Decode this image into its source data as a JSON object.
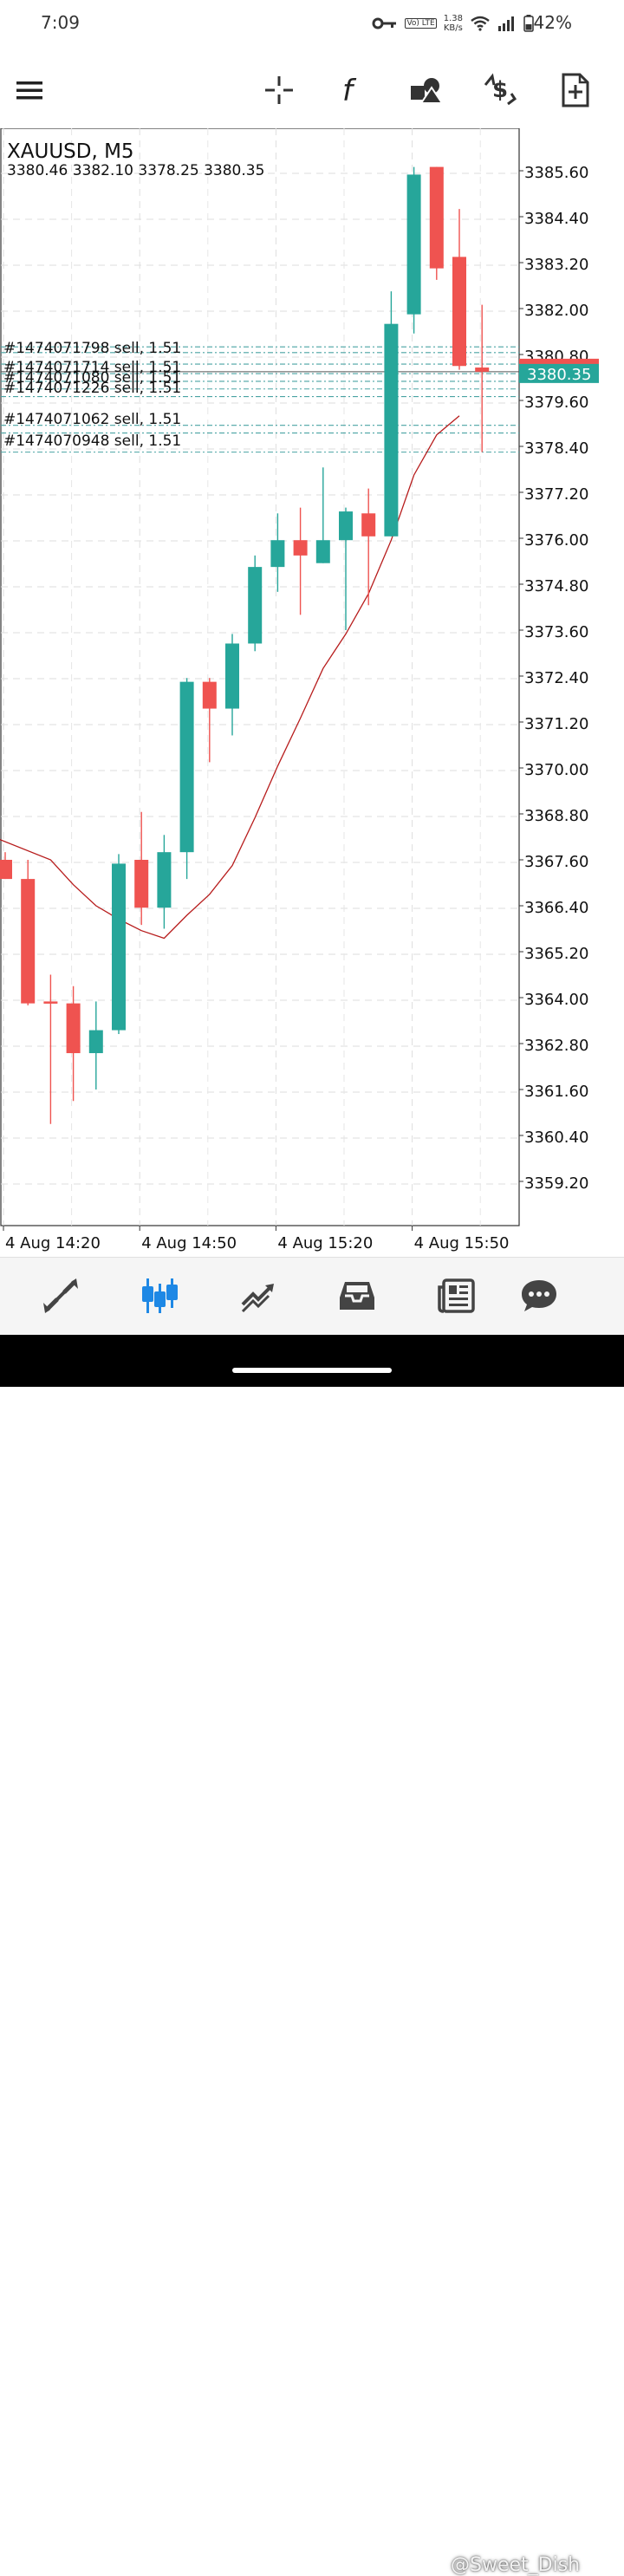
{
  "status_bar": {
    "time": "7:09",
    "volte_label": "Vo) LTE",
    "speed_value": "1.38",
    "speed_unit": "KB/s",
    "battery": "42%"
  },
  "toolbar": {
    "icons": [
      "menu-icon",
      "crosshair-icon",
      "indicators-icon",
      "objects-icon",
      "trade-icon",
      "new-order-icon"
    ]
  },
  "chart": {
    "symbol_line": "XAUUSD, M5",
    "ohlc_line": "3380.46 3382.10 3378.25 3380.35",
    "current_price": "3380.35",
    "order_labels": [
      "#1474071798 sell, 1.51",
      "#1474071714 sell, 1.51",
      "#1474071080 sell, 1.51",
      "#1474071226 sell, 1.51",
      "#1474071062 sell, 1.51",
      "#1474070948 sell, 1.51"
    ]
  },
  "chart_data": {
    "type": "candlestick",
    "symbol": "XAUUSD",
    "timeframe": "M5",
    "y_ticks": [
      3385.6,
      3384.4,
      3383.2,
      3382.0,
      3380.8,
      3379.6,
      3378.4,
      3377.2,
      3376.0,
      3374.8,
      3373.6,
      3372.4,
      3371.2,
      3370.0,
      3368.8,
      3367.6,
      3366.4,
      3365.2,
      3364.0,
      3362.8,
      3361.6,
      3360.4,
      3359.2
    ],
    "y_tick_labels": [
      "3385.60",
      "3384.40",
      "3383.20",
      "3382.00",
      "3380.80",
      "3379.60",
      "3378.40",
      "3377.20",
      "3376.00",
      "3374.80",
      "3373.60",
      "3372.40",
      "3371.20",
      "3370.00",
      "3368.80",
      "3367.60",
      "3366.40",
      "3365.20",
      "3364.00",
      "3362.80",
      "3361.60",
      "3360.40",
      "3359.20"
    ],
    "x_labels": [
      "4 Aug 14:20",
      "4 Aug 14:50",
      "4 Aug 15:20",
      "4 Aug 15:50"
    ],
    "up_color": "#26a69a",
    "down_color": "#ef5350",
    "ma_color": "#b71c1c",
    "candles": [
      {
        "o": 3367.6,
        "h": 3367.8,
        "l": 3367.1,
        "c": 3367.1
      },
      {
        "o": 3367.1,
        "h": 3367.6,
        "l": 3363.8,
        "c": 3363.85
      },
      {
        "o": 3363.9,
        "h": 3364.6,
        "l": 3360.7,
        "c": 3363.85
      },
      {
        "o": 3363.85,
        "h": 3364.3,
        "l": 3361.3,
        "c": 3362.55
      },
      {
        "o": 3362.55,
        "h": 3363.9,
        "l": 3361.6,
        "c": 3363.15
      },
      {
        "o": 3363.15,
        "h": 3367.75,
        "l": 3363.05,
        "c": 3367.5
      },
      {
        "o": 3367.6,
        "h": 3368.85,
        "l": 3365.9,
        "c": 3366.35
      },
      {
        "o": 3366.35,
        "h": 3368.25,
        "l": 3365.8,
        "c": 3367.8
      },
      {
        "o": 3367.8,
        "h": 3372.35,
        "l": 3367.1,
        "c": 3372.25
      },
      {
        "o": 3372.25,
        "h": 3372.35,
        "l": 3370.15,
        "c": 3371.55
      },
      {
        "o": 3371.55,
        "h": 3373.5,
        "l": 3370.85,
        "c": 3373.25
      },
      {
        "o": 3373.25,
        "h": 3375.55,
        "l": 3373.05,
        "c": 3375.25
      },
      {
        "o": 3375.25,
        "h": 3376.65,
        "l": 3374.6,
        "c": 3375.95
      },
      {
        "o": 3375.95,
        "h": 3376.8,
        "l": 3374.0,
        "c": 3375.55
      },
      {
        "o": 3375.35,
        "h": 3377.85,
        "l": 3375.35,
        "c": 3375.95
      },
      {
        "o": 3375.95,
        "h": 3376.8,
        "l": 3373.6,
        "c": 3376.7
      },
      {
        "o": 3376.65,
        "h": 3377.3,
        "l": 3374.25,
        "c": 3376.05
      },
      {
        "o": 3376.05,
        "h": 3382.45,
        "l": 3376.05,
        "c": 3381.6
      },
      {
        "o": 3381.85,
        "h": 3385.7,
        "l": 3381.35,
        "c": 3385.5
      },
      {
        "o": 3385.7,
        "h": 3385.7,
        "l": 3382.75,
        "c": 3383.05
      },
      {
        "o": 3383.35,
        "h": 3384.6,
        "l": 3380.4,
        "c": 3380.5
      },
      {
        "o": 3380.46,
        "h": 3382.1,
        "l": 3378.25,
        "c": 3380.35
      }
    ],
    "ma": [
      3368.2,
      3367.6,
      3366.95,
      3366.4,
      3366.05,
      3365.75,
      3365.55,
      3366.15,
      3366.7,
      3367.45,
      3368.7,
      3370.05,
      3371.3,
      3372.6,
      3373.5,
      3374.55,
      3375.95,
      3377.65,
      3378.7,
      3379.2
    ]
  },
  "bottom_nav": {
    "items": [
      "quotes-icon",
      "chart-icon",
      "trade-icon",
      "history-icon",
      "news-icon",
      "messages-icon"
    ]
  },
  "watermark": "@Sweet_Dish"
}
